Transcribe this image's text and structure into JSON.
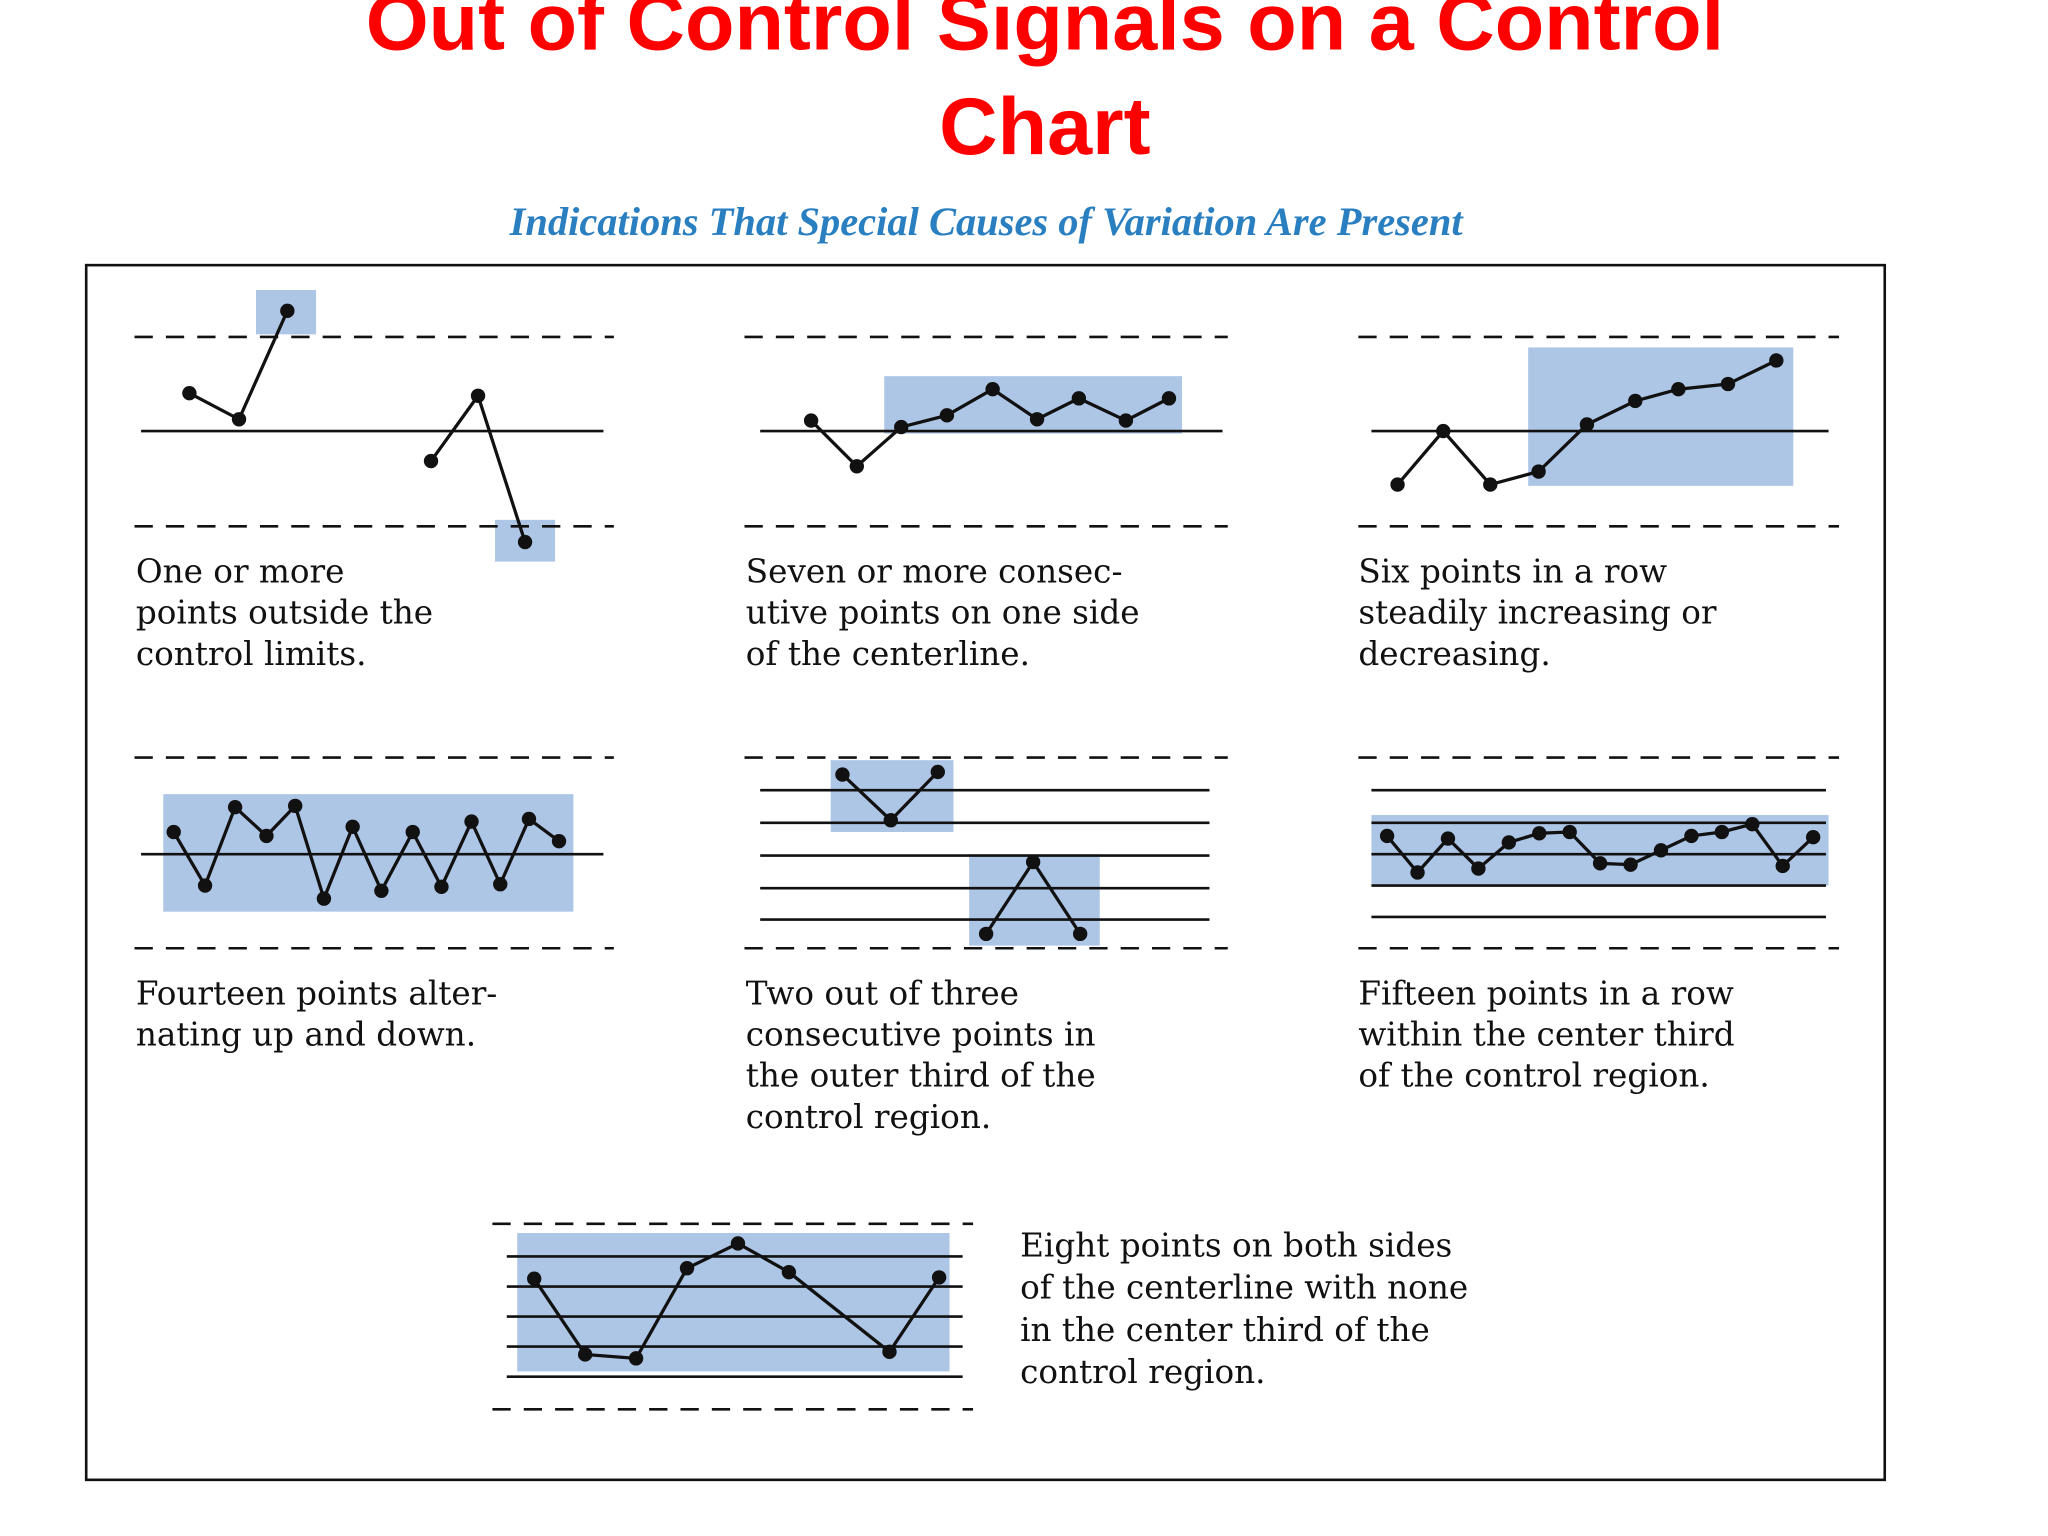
{
  "header": {
    "title": [
      "Out of Control Signals on a Control",
      "Chart"
    ],
    "subtitle": "Indications That Special Causes of Variation Are Present"
  },
  "panels": [
    {
      "caption": [
        "One or more",
        "points outside the",
        "control limits."
      ]
    },
    {
      "caption": [
        "Seven or more consec-",
        "utive points on one side",
        "of the centerline."
      ]
    },
    {
      "caption": [
        "Six points in a row",
        "steadily increasing or",
        "decreasing."
      ]
    },
    {
      "caption": [
        "Fourteen points alter-",
        "nating up and down."
      ]
    },
    {
      "caption": [
        "Two out of three",
        "consecutive points in",
        "the outer third of the",
        "control region."
      ]
    },
    {
      "caption": [
        "Fifteen points in a row",
        "within the center third",
        "of the control region."
      ]
    },
    {
      "caption": [
        "Eight points on both sides",
        "of the centerline with none",
        "in the center third of the",
        "control region."
      ]
    }
  ]
}
